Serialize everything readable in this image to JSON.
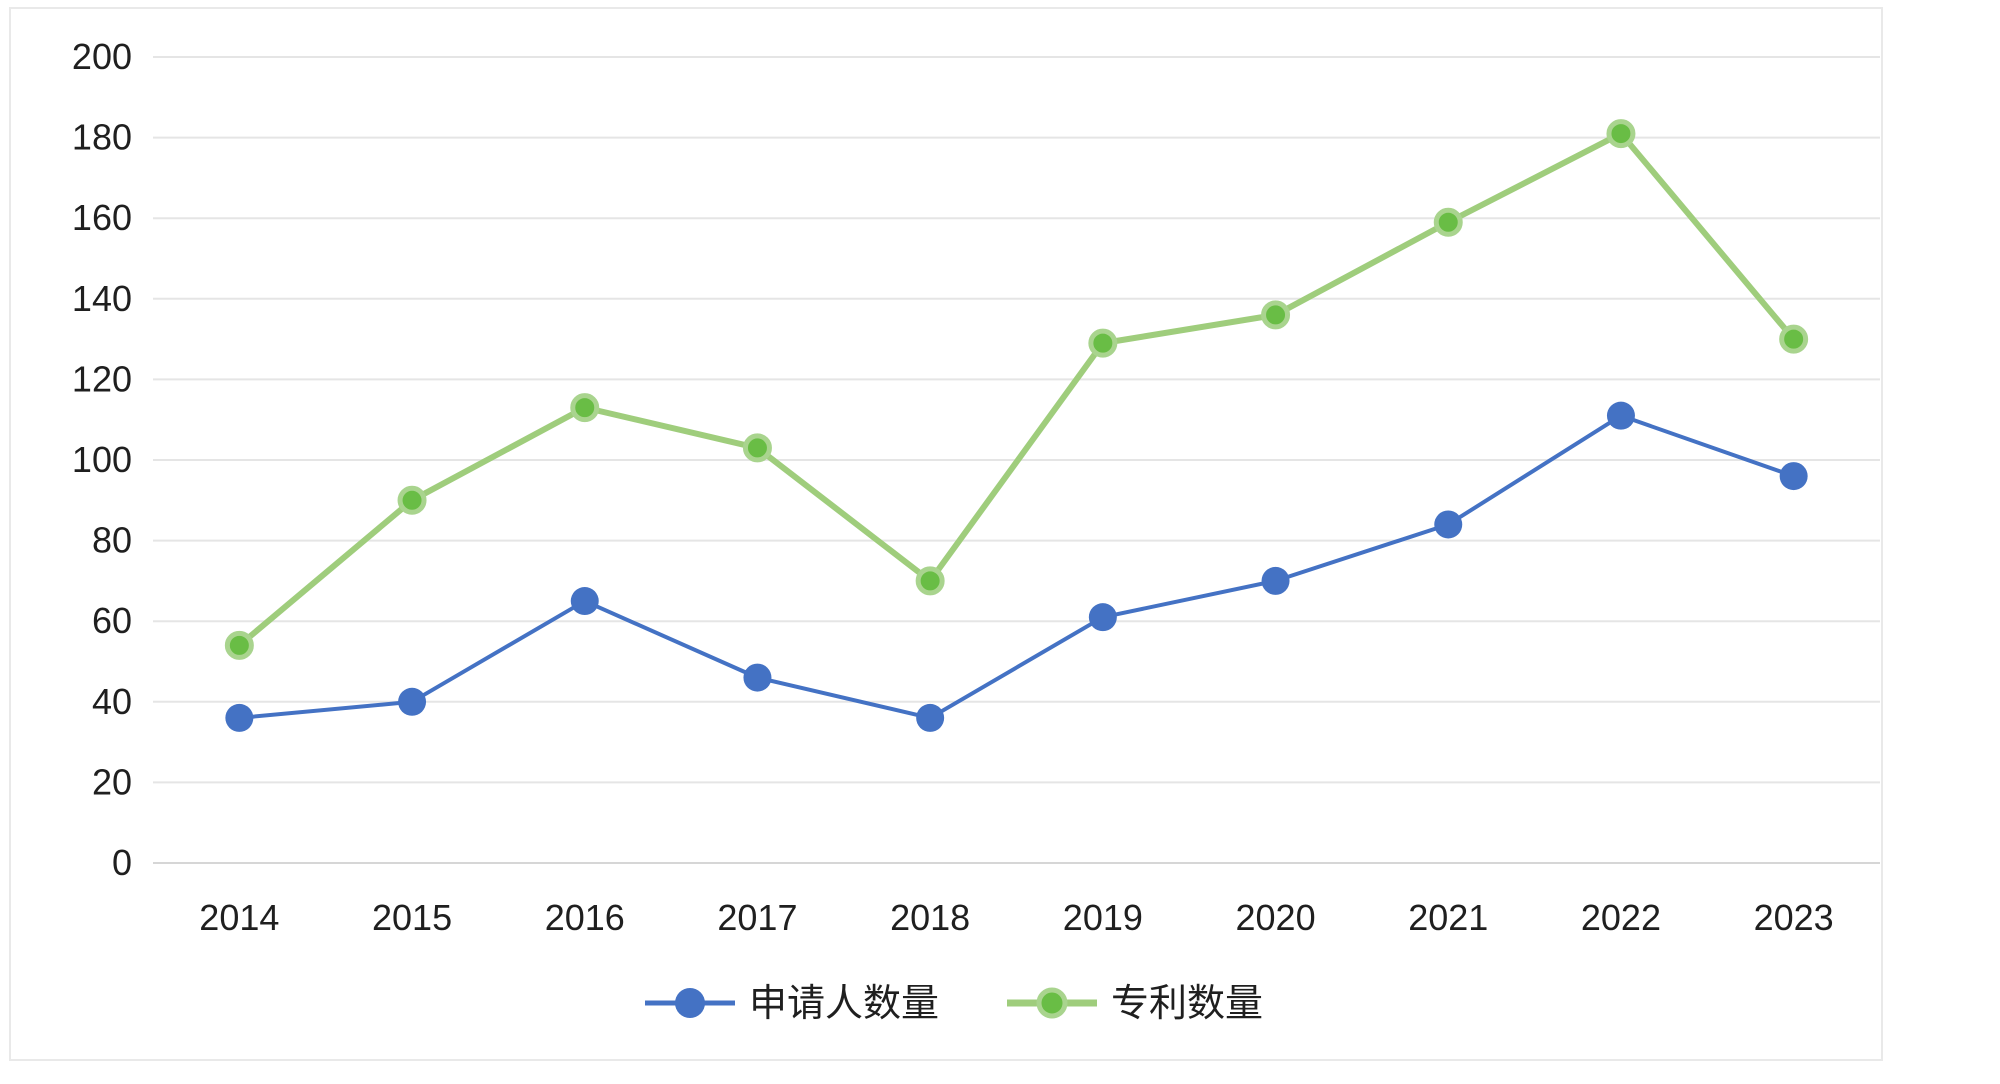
{
  "chart_data": {
    "type": "line",
    "title": "",
    "xlabel": "",
    "ylabel": "",
    "categories": [
      "2014",
      "2015",
      "2016",
      "2017",
      "2018",
      "2019",
      "2020",
      "2021",
      "2022",
      "2023"
    ],
    "series": [
      {
        "name": "申请人数量",
        "values": [
          36,
          40,
          65,
          46,
          36,
          61,
          70,
          84,
          111,
          96
        ],
        "line_color": "#4472C4",
        "marker_fill": "#4472C4",
        "marker_ring": "#4472C4",
        "line_width": 4,
        "marker_radius": 14,
        "ring_width": 0
      },
      {
        "name": "专利数量",
        "values": [
          54,
          90,
          113,
          103,
          70,
          129,
          136,
          159,
          181,
          130
        ],
        "line_color": "#9FCD7C",
        "marker_fill": "#69BD45",
        "marker_ring": "#A9D48E",
        "line_width": 6,
        "marker_radius": 12,
        "ring_width": 5
      }
    ],
    "ylim": [
      0,
      200
    ],
    "ytick_step": 20,
    "y_tick_labels": [
      "0",
      "20",
      "40",
      "60",
      "80",
      "100",
      "120",
      "140",
      "160",
      "180",
      "200"
    ],
    "grid": true,
    "legend_position": "bottom",
    "colors": {
      "background": "#ffffff",
      "gridline": "#E5E5E5",
      "zero_line": "#D6D6D6",
      "chart_border": "#E9E9E9",
      "tick_text": "#1f1f1f",
      "legend_text": "#1f1f1f"
    }
  }
}
